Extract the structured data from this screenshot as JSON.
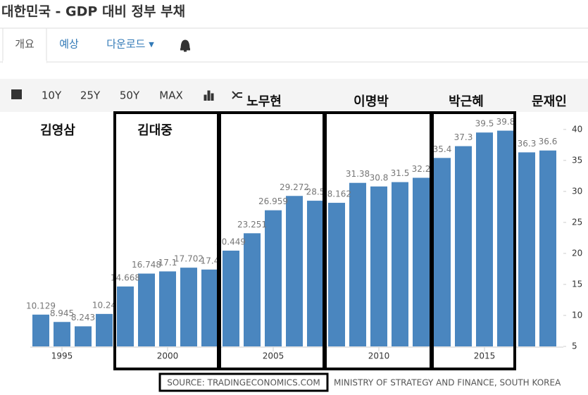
{
  "ui": {
    "title": "대한민국 - GDP 대비 정부 부채",
    "tabs": [
      "개요",
      "예상",
      "다운로드 ▾"
    ],
    "ranges": [
      "10Y",
      "25Y",
      "50Y",
      "MAX"
    ]
  },
  "chart_data": {
    "type": "bar",
    "categories": [
      null,
      "1995",
      null,
      null,
      null,
      null,
      "2000",
      null,
      null,
      null,
      null,
      "2005",
      null,
      null,
      null,
      null,
      "2010",
      null,
      null,
      null,
      null,
      "2015",
      null,
      null,
      null
    ],
    "values": [
      10.129,
      8.945,
      8.243,
      10.24,
      14.668,
      16.748,
      17.1,
      17.702,
      17.4,
      20.449,
      23.251,
      26.959,
      29.272,
      28.5,
      28.162,
      31.38,
      30.8,
      31.5,
      32.2,
      35.4,
      37.3,
      39.5,
      39.8,
      36.3,
      36.6
    ],
    "color": "#4a86bf",
    "ylim": [
      5,
      41
    ],
    "yticks": [
      5,
      10,
      15,
      20,
      25,
      30,
      35,
      40
    ],
    "annotations": [
      "김영삼",
      "김대중",
      "노무현",
      "이명박",
      "박근혜",
      "문재인"
    ],
    "source": [
      "SOURCE: TRADINGECONOMICS.COM",
      "MINISTRY OF STRATEGY AND FINANCE, SOUTH KOREA"
    ]
  }
}
